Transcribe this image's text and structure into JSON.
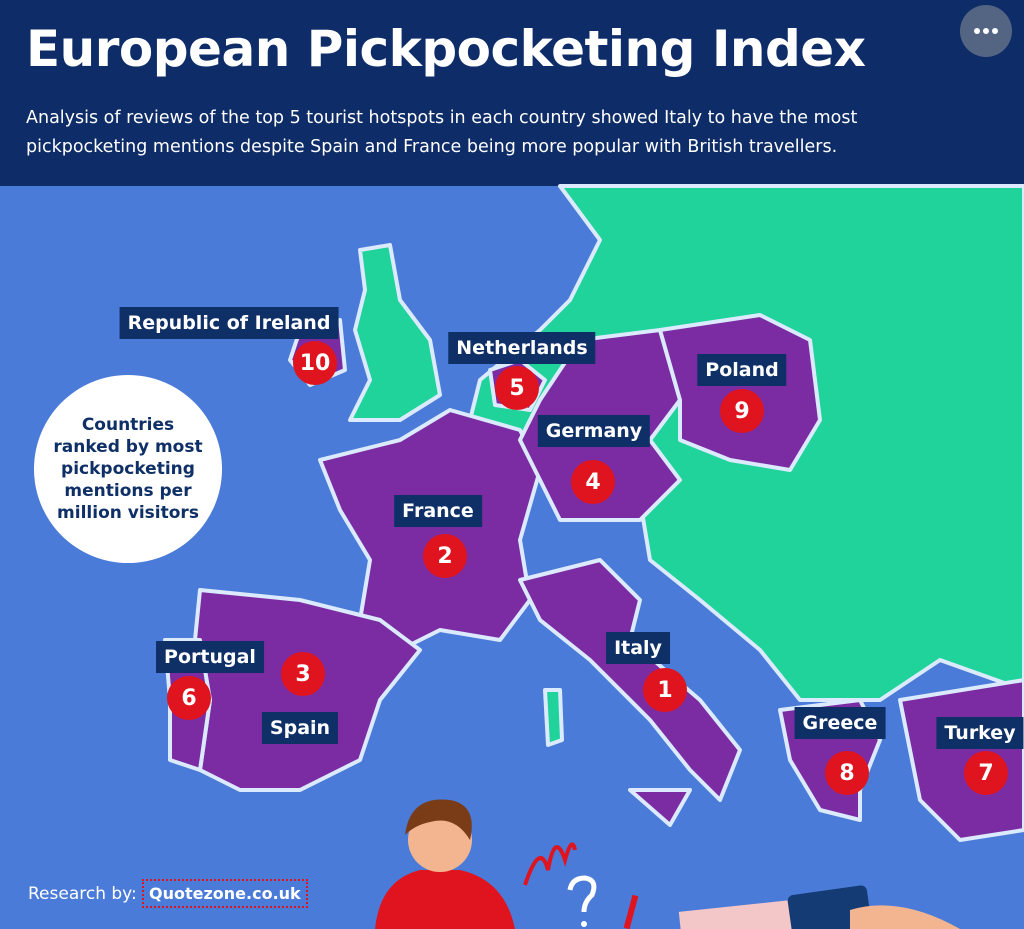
{
  "header": {
    "title": "European Pickpocketing Index",
    "subtitle": "Analysis of reviews of the top 5 tourist hotspots in each country showed Italy to have the most pickpocketing mentions despite Spain and France being more popular with British travellers."
  },
  "legend_note": "Countries ranked by most pickpocketing mentions per million visitors",
  "countries": [
    {
      "name": "Italy",
      "rank": 1
    },
    {
      "name": "France",
      "rank": 2
    },
    {
      "name": "Spain",
      "rank": 3
    },
    {
      "name": "Germany",
      "rank": 4
    },
    {
      "name": "Netherlands",
      "rank": 5
    },
    {
      "name": "Portugal",
      "rank": 6
    },
    {
      "name": "Turkey",
      "rank": 7
    },
    {
      "name": "Greece",
      "rank": 8
    },
    {
      "name": "Poland",
      "rank": 9
    },
    {
      "name": "Republic of Ireland",
      "rank": 10
    }
  ],
  "footer": {
    "label": "Research by:",
    "source": "Quotezone.co.uk"
  }
}
